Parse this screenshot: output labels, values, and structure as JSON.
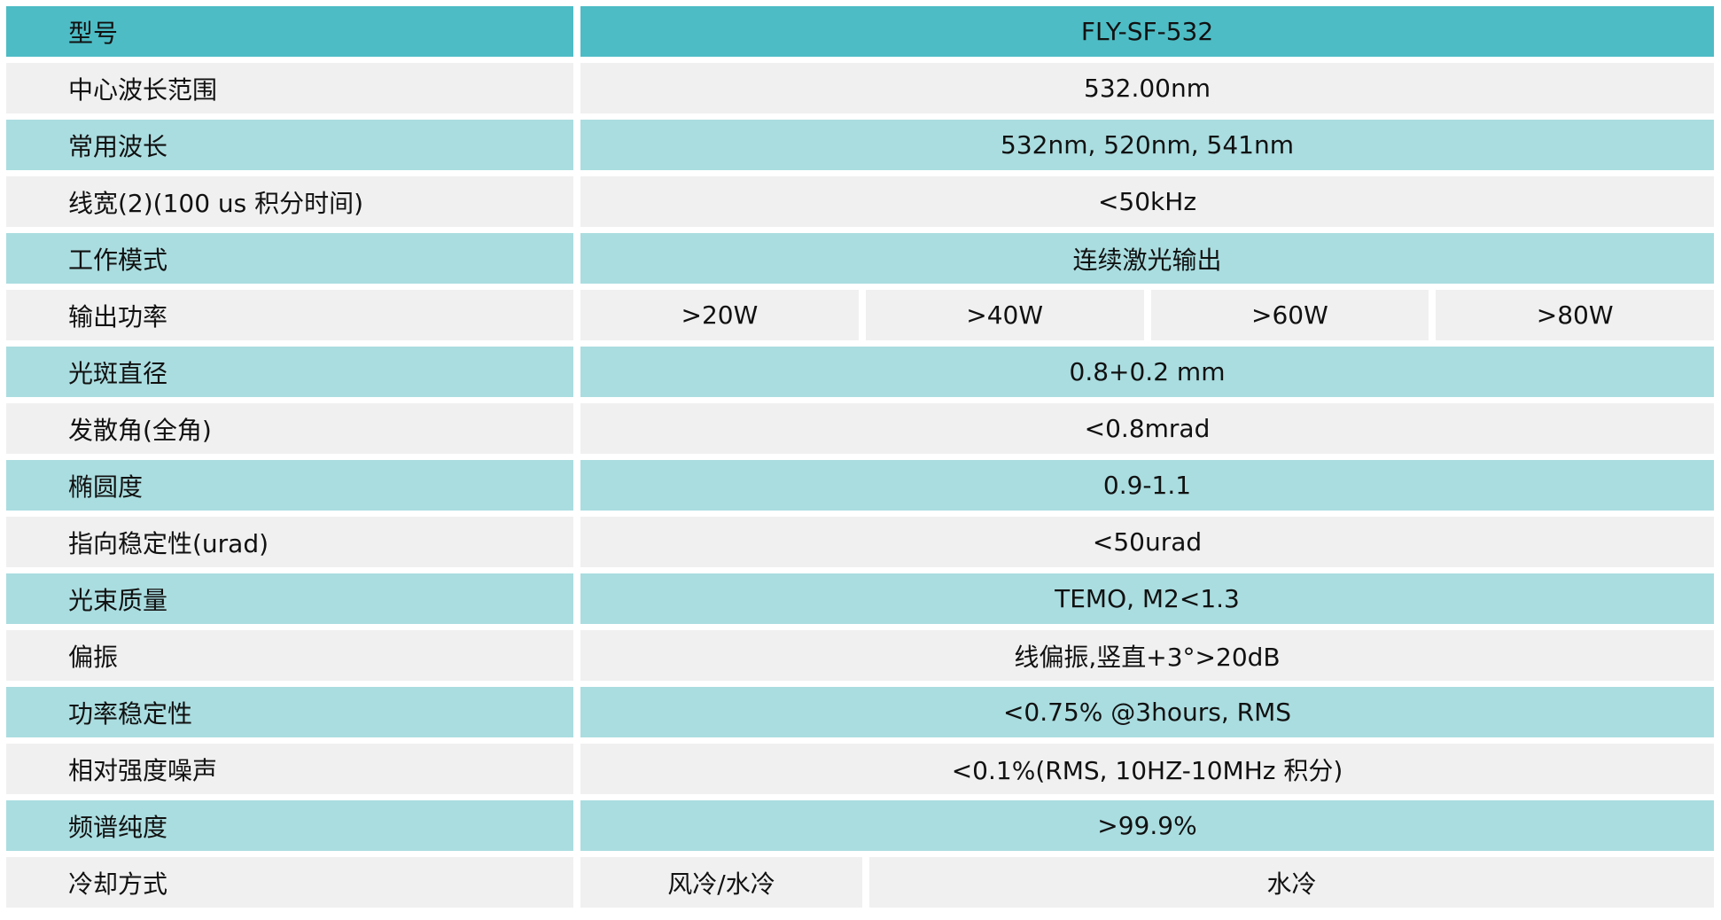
{
  "colors": {
    "header": "#4dbcc5",
    "teal_row": "#aadde0",
    "gray_row": "#f0f0f0"
  },
  "header": {
    "label": "型号",
    "value": "FLY-SF-532"
  },
  "rows": [
    {
      "label": "中心波长范围",
      "value": "532.00nm"
    },
    {
      "label": "常用波长",
      "value": "532nm, 520nm, 541nm"
    },
    {
      "label": "线宽(2)(100 us 积分时间)",
      "value": "<50kHz"
    },
    {
      "label": "工作模式",
      "value": "连续激光输出"
    },
    {
      "label": "输出功率",
      "values": [
        ">20W",
        ">40W",
        ">60W",
        ">80W"
      ]
    },
    {
      "label": "光斑直径",
      "value": "0.8+0.2 mm"
    },
    {
      "label": "发散角(全角)",
      "value": "<0.8mrad"
    },
    {
      "label": "椭圆度",
      "value": "0.9-1.1"
    },
    {
      "label": "指向稳定性(urad)",
      "value": "<50urad"
    },
    {
      "label": "光束质量",
      "value": "TEMO, M2<1.3"
    },
    {
      "label": "偏振",
      "value": "线偏振,竖直+3°>20dB"
    },
    {
      "label": "功率稳定性",
      "value": "<0.75% @3hours, RMS"
    },
    {
      "label": "相对强度噪声",
      "value": "<0.1%(RMS, 10HZ-10MHz 积分)"
    },
    {
      "label": "频谱纯度",
      "value": ">99.9%"
    },
    {
      "label": "冷却方式",
      "values": [
        "风冷/水冷",
        "水冷"
      ]
    }
  ]
}
